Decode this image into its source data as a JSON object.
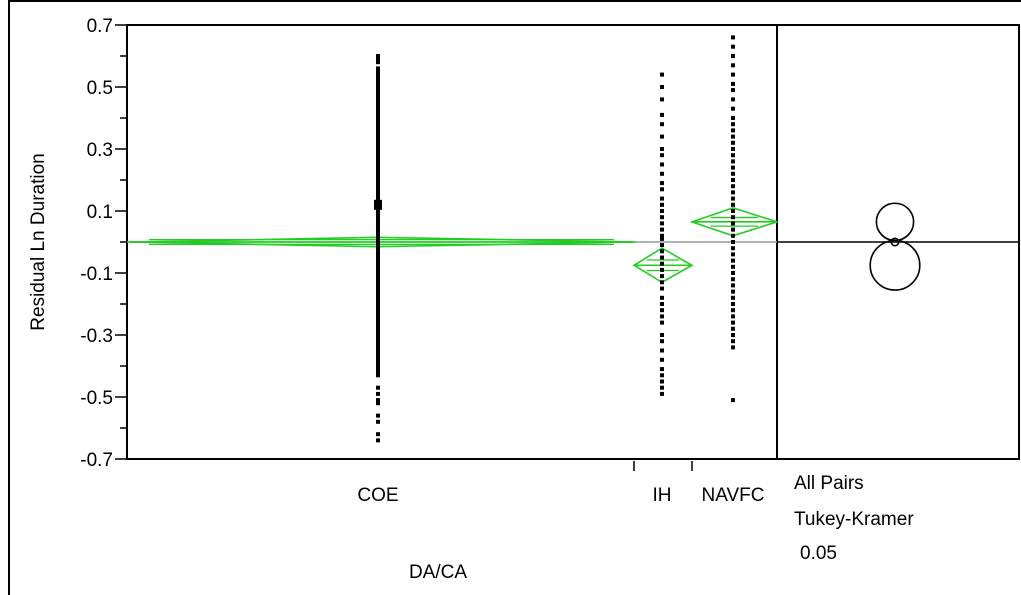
{
  "chart_data": {
    "type": "scatter",
    "title": "",
    "ylabel": "Residual Ln Duration",
    "xlabel": "DA/CA",
    "ylim": [
      -0.7,
      0.7
    ],
    "yticks": [
      -0.7,
      -0.5,
      -0.3,
      -0.1,
      0.1,
      0.3,
      0.5,
      0.7
    ],
    "ytick_labels": [
      "-0.7",
      "-0.5",
      "-0.3",
      "-0.1",
      "0.1",
      "0.3",
      "0.5",
      "0.7"
    ],
    "reference_line": 0,
    "grand_mean_line_color": "#999999",
    "diamond_color": "#22cc22",
    "groups": [
      {
        "name": "COE",
        "mean": 0.0,
        "ci": [
          -0.015,
          0.015
        ],
        "points": [
          0.6,
          0.59,
          0.58,
          0.56,
          0.55,
          0.54,
          0.53,
          0.52,
          0.51,
          0.5,
          0.49,
          0.48,
          0.47,
          0.46,
          0.45,
          0.44,
          0.43,
          0.42,
          0.41,
          0.4,
          0.39,
          0.38,
          0.37,
          0.36,
          0.35,
          0.34,
          0.33,
          0.32,
          0.31,
          0.3,
          0.29,
          0.28,
          0.27,
          0.26,
          0.25,
          0.24,
          0.23,
          0.22,
          0.21,
          0.2,
          0.19,
          0.18,
          0.17,
          0.16,
          0.15,
          0.14,
          0.13,
          0.12,
          0.11,
          0.1,
          0.09,
          0.08,
          0.07,
          0.06,
          0.05,
          0.04,
          0.03,
          0.02,
          0.01,
          0.0,
          -0.01,
          -0.02,
          -0.03,
          -0.04,
          -0.05,
          -0.06,
          -0.07,
          -0.08,
          -0.09,
          -0.1,
          -0.11,
          -0.12,
          -0.13,
          -0.14,
          -0.15,
          -0.16,
          -0.17,
          -0.18,
          -0.19,
          -0.2,
          -0.21,
          -0.22,
          -0.23,
          -0.24,
          -0.25,
          -0.26,
          -0.27,
          -0.28,
          -0.29,
          -0.3,
          -0.31,
          -0.32,
          -0.33,
          -0.34,
          -0.35,
          -0.36,
          -0.37,
          -0.38,
          -0.39,
          -0.4,
          -0.41,
          -0.42,
          -0.43,
          -0.47,
          -0.49,
          -0.51,
          -0.52,
          -0.56,
          -0.58,
          -0.62,
          -0.64
        ]
      },
      {
        "name": "IH",
        "mean": -0.075,
        "ci": [
          -0.13,
          -0.02
        ],
        "points": [
          0.54,
          0.5,
          0.46,
          0.41,
          0.38,
          0.34,
          0.3,
          0.28,
          0.25,
          0.22,
          0.19,
          0.17,
          0.14,
          0.12,
          0.1,
          0.08,
          0.06,
          0.04,
          0.02,
          0.01,
          -0.01,
          -0.03,
          -0.05,
          -0.07,
          -0.09,
          -0.11,
          -0.13,
          -0.15,
          -0.18,
          -0.2,
          -0.22,
          -0.24,
          -0.26,
          -0.3,
          -0.32,
          -0.35,
          -0.38,
          -0.41,
          -0.43,
          -0.45,
          -0.47,
          -0.49
        ]
      },
      {
        "name": "NAVFC",
        "mean": 0.065,
        "ci": [
          0.02,
          0.11
        ],
        "points": [
          0.66,
          0.63,
          0.6,
          0.57,
          0.54,
          0.51,
          0.49,
          0.46,
          0.43,
          0.4,
          0.38,
          0.36,
          0.34,
          0.32,
          0.3,
          0.28,
          0.26,
          0.24,
          0.22,
          0.2,
          0.18,
          0.16,
          0.14,
          0.12,
          0.1,
          0.08,
          0.06,
          0.04,
          0.02,
          0.0,
          -0.02,
          -0.04,
          -0.06,
          -0.08,
          -0.1,
          -0.12,
          -0.14,
          -0.16,
          -0.18,
          -0.2,
          -0.22,
          -0.24,
          -0.26,
          -0.28,
          -0.3,
          -0.32,
          -0.34,
          -0.51
        ]
      }
    ],
    "comparison_circles": {
      "labels": [
        "All Pairs",
        "Tukey-Kramer",
        "0.05"
      ],
      "circles": [
        {
          "center": 0.065,
          "radius": 0.06
        },
        {
          "center": -0.075,
          "radius": 0.08
        },
        {
          "center": 0.0,
          "radius": 0.012
        }
      ]
    }
  }
}
